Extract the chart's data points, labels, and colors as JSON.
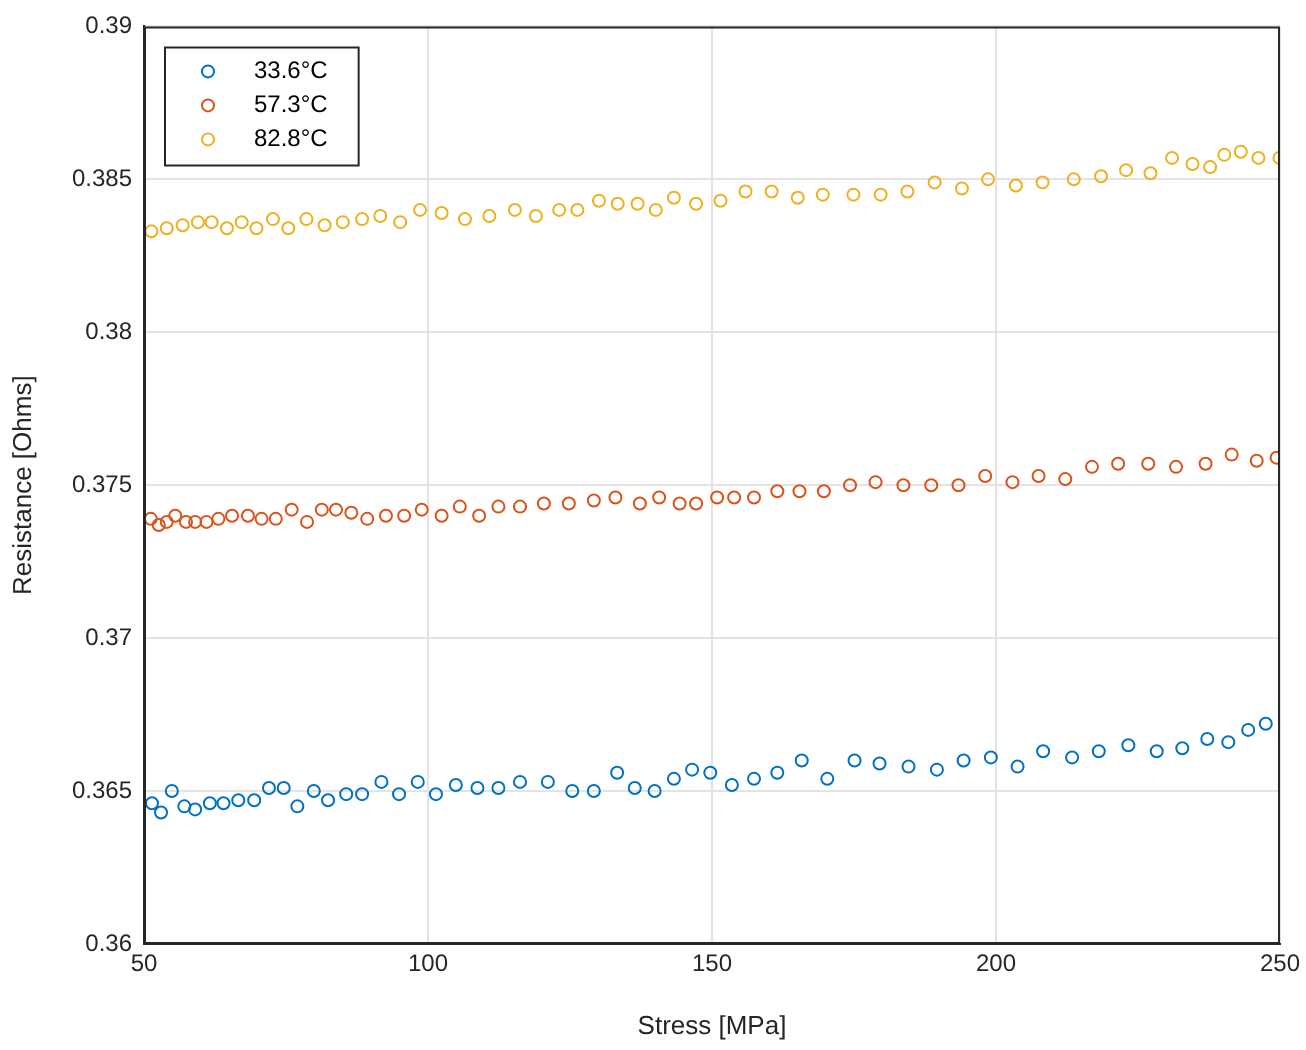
{
  "chart_data": {
    "type": "scatter",
    "xlabel": "Stress [MPa]",
    "ylabel": "Resistance [Ohms]",
    "xlim": [
      50,
      250
    ],
    "xticks": [
      50,
      100,
      150,
      200,
      250
    ],
    "ylim": [
      0.36,
      0.39
    ],
    "yticks": [
      0.36,
      0.365,
      0.37,
      0.375,
      0.38,
      0.385,
      0.39
    ],
    "grid": true,
    "legend": "top left",
    "marker": "circle",
    "series": [
      {
        "name": "33.6°C",
        "color": "#0072bd",
        "x": [
          51.4,
          53.0,
          54.9,
          57.1,
          59.0,
          61.6,
          64.0,
          66.6,
          69.4,
          72.0,
          74.6,
          77.0,
          79.9,
          82.4,
          85.6,
          88.4,
          91.8,
          94.9,
          98.2,
          101.4,
          104.9,
          108.7,
          112.4,
          116.2,
          121.1,
          125.4,
          129.2,
          133.3,
          136.4,
          139.9,
          143.3,
          146.5,
          149.7,
          153.5,
          157.4,
          161.5,
          165.8,
          170.3,
          175.1,
          179.5,
          184.6,
          189.6,
          194.3,
          199.1,
          203.8,
          208.3,
          213.4,
          218.1,
          223.3,
          228.3,
          232.8,
          237.2,
          240.9,
          244.4,
          247.5
        ],
        "values": [
          0.3646,
          0.3643,
          0.365,
          0.3645,
          0.3644,
          0.3646,
          0.3646,
          0.3647,
          0.3647,
          0.3651,
          0.3651,
          0.3645,
          0.365,
          0.3647,
          0.3649,
          0.3649,
          0.3653,
          0.3649,
          0.3653,
          0.3649,
          0.3652,
          0.3651,
          0.3651,
          0.3653,
          0.3653,
          0.365,
          0.365,
          0.3656,
          0.3651,
          0.365,
          0.3654,
          0.3657,
          0.3656,
          0.3652,
          0.3654,
          0.3656,
          0.366,
          0.3654,
          0.366,
          0.3659,
          0.3658,
          0.3657,
          0.366,
          0.3661,
          0.3658,
          0.3663,
          0.3661,
          0.3663,
          0.3665,
          0.3663,
          0.3664,
          0.3667,
          0.3666,
          0.367,
          0.3672
        ]
      },
      {
        "name": "57.3°C",
        "color": "#d95319",
        "x": [
          51.2,
          52.6,
          54.0,
          55.5,
          57.4,
          59.0,
          61.0,
          63.1,
          65.5,
          68.3,
          70.7,
          73.2,
          76.0,
          78.7,
          81.3,
          83.8,
          86.5,
          89.3,
          92.6,
          95.8,
          98.9,
          102.4,
          105.6,
          109.0,
          112.4,
          116.2,
          120.4,
          124.8,
          129.2,
          133.0,
          137.3,
          140.7,
          144.3,
          147.2,
          150.9,
          153.9,
          157.4,
          161.5,
          165.4,
          169.7,
          174.3,
          178.8,
          183.7,
          188.6,
          193.4,
          198.1,
          202.9,
          207.5,
          212.2,
          216.9,
          221.5,
          226.8,
          231.7,
          236.9,
          241.5,
          245.9,
          249.4
        ],
        "values": [
          0.3739,
          0.3737,
          0.3738,
          0.374,
          0.3738,
          0.3738,
          0.3738,
          0.3739,
          0.374,
          0.374,
          0.3739,
          0.3739,
          0.3742,
          0.3738,
          0.3742,
          0.3742,
          0.3741,
          0.3739,
          0.374,
          0.374,
          0.3742,
          0.374,
          0.3743,
          0.374,
          0.3743,
          0.3743,
          0.3744,
          0.3744,
          0.3745,
          0.3746,
          0.3744,
          0.3746,
          0.3744,
          0.3744,
          0.3746,
          0.3746,
          0.3746,
          0.3748,
          0.3748,
          0.3748,
          0.375,
          0.3751,
          0.375,
          0.375,
          0.375,
          0.3753,
          0.3751,
          0.3753,
          0.3752,
          0.3756,
          0.3757,
          0.3757,
          0.3756,
          0.3757,
          0.376,
          0.3758,
          0.3759
        ]
      },
      {
        "name": "82.8°C",
        "color": "#edb120",
        "x": [
          51.3,
          54.0,
          56.8,
          59.5,
          61.9,
          64.6,
          67.2,
          69.8,
          72.7,
          75.4,
          78.6,
          81.8,
          85.0,
          88.4,
          91.6,
          95.1,
          98.6,
          102.4,
          106.5,
          110.8,
          115.3,
          119.0,
          123.1,
          126.3,
          130.1,
          133.4,
          136.9,
          140.1,
          143.3,
          147.2,
          151.5,
          155.9,
          160.5,
          165.1,
          169.5,
          174.9,
          179.7,
          184.4,
          189.2,
          194.0,
          198.6,
          203.5,
          208.2,
          213.7,
          218.5,
          222.9,
          227.2,
          231.0,
          234.6,
          237.7,
          240.2,
          243.1,
          246.2,
          249.9
        ],
        "values": [
          0.3833,
          0.3834,
          0.3835,
          0.3836,
          0.3836,
          0.3834,
          0.3836,
          0.3834,
          0.3837,
          0.3834,
          0.3837,
          0.3835,
          0.3836,
          0.3837,
          0.3838,
          0.3836,
          0.384,
          0.3839,
          0.3837,
          0.3838,
          0.384,
          0.3838,
          0.384,
          0.384,
          0.3843,
          0.3842,
          0.3842,
          0.384,
          0.3844,
          0.3842,
          0.3843,
          0.3846,
          0.3846,
          0.3844,
          0.3845,
          0.3845,
          0.3845,
          0.3846,
          0.3849,
          0.3847,
          0.385,
          0.3848,
          0.3849,
          0.385,
          0.3851,
          0.3853,
          0.3852,
          0.3857,
          0.3855,
          0.3854,
          0.3858,
          0.3859,
          0.3857,
          0.3857
        ]
      }
    ]
  }
}
